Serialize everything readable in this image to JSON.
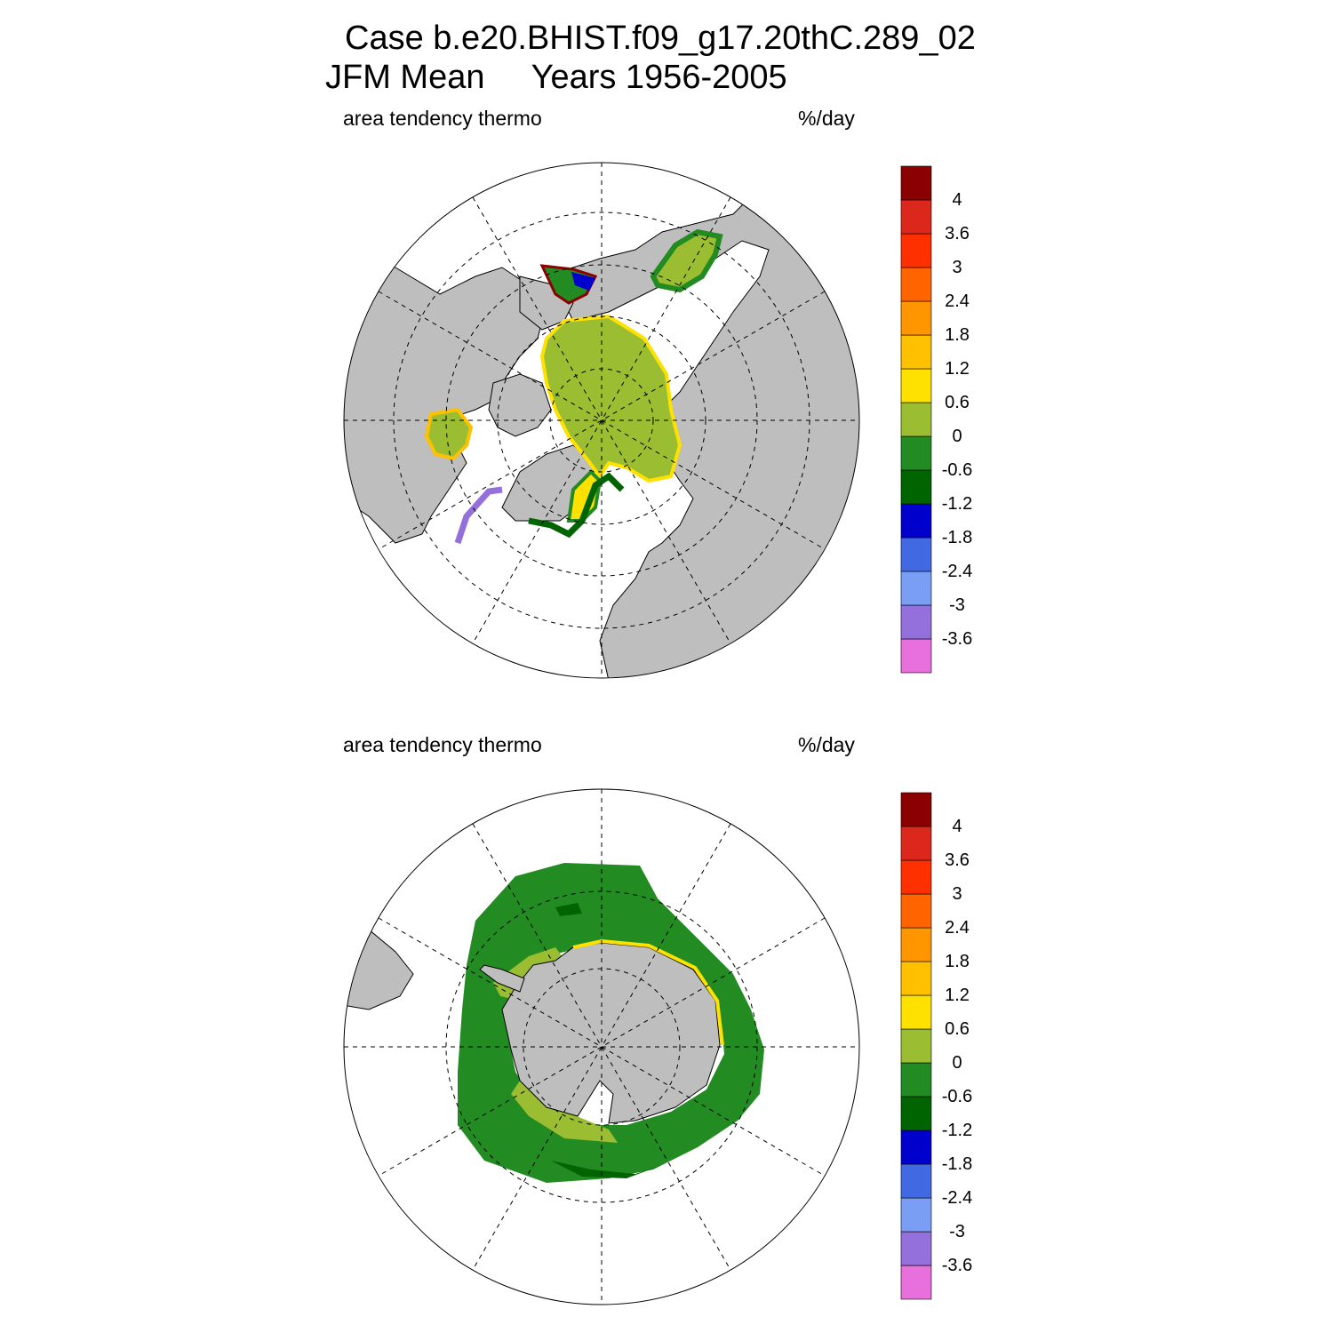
{
  "header": {
    "line1": "Case b.e20.BHIST.f09_g17.20thC.289_02",
    "line2": "JFM Mean     Years 1956-2005"
  },
  "panels": [
    {
      "hemisphere": "north",
      "variable_label": "area tendency thermo",
      "units_label": "%/day"
    },
    {
      "hemisphere": "south",
      "variable_label": "area tendency thermo",
      "units_label": "%/day"
    }
  ],
  "colorbar": {
    "colors": [
      "#e770dc",
      "#9370db",
      "#7a9ef4",
      "#4169e1",
      "#0000cd",
      "#006400",
      "#228b22",
      "#9abd31",
      "#ffe100",
      "#ffc000",
      "#ff9600",
      "#ff6400",
      "#ff3000",
      "#dc281c",
      "#8b0000"
    ],
    "labels": [
      "-3.6",
      "-3",
      "-2.4",
      "-1.8",
      "-1.2",
      "-0.6",
      "0",
      "0.6",
      "1.2",
      "1.8",
      "2.4",
      "3",
      "3.6",
      "4"
    ]
  },
  "map_colors": {
    "land": "#bebebe",
    "ocean": "#ffffff"
  }
}
